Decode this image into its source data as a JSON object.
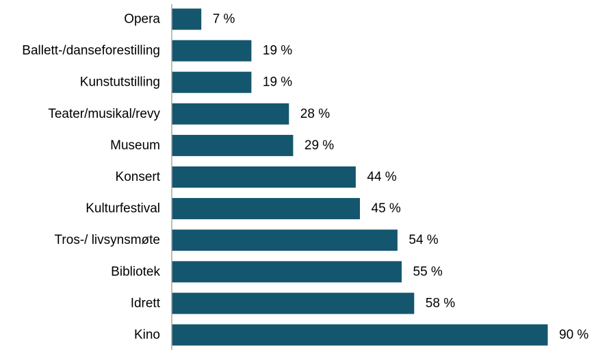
{
  "chart_data": {
    "type": "bar",
    "orientation": "horizontal",
    "categories": [
      "Opera",
      "Ballett-/danseforestilling",
      "Kunstutstilling",
      "Teater/musikal/revy",
      "Museum",
      "Konsert",
      "Kulturfestival",
      "Tros-/ livsynsmøte",
      "Bibliotek",
      "Idrett",
      "Kino"
    ],
    "values": [
      7,
      19,
      19,
      28,
      29,
      44,
      45,
      54,
      55,
      58,
      90
    ],
    "value_labels": [
      "7 %",
      "19 %",
      "19 %",
      "28 %",
      "29 %",
      "44 %",
      "45 %",
      "54 %",
      "55 %",
      "58 %",
      "90 %"
    ],
    "xlim": [
      0,
      100
    ],
    "bar_color": "#14566e",
    "axis_color": "#a6a6a6",
    "grid": false,
    "legend": "none"
  }
}
